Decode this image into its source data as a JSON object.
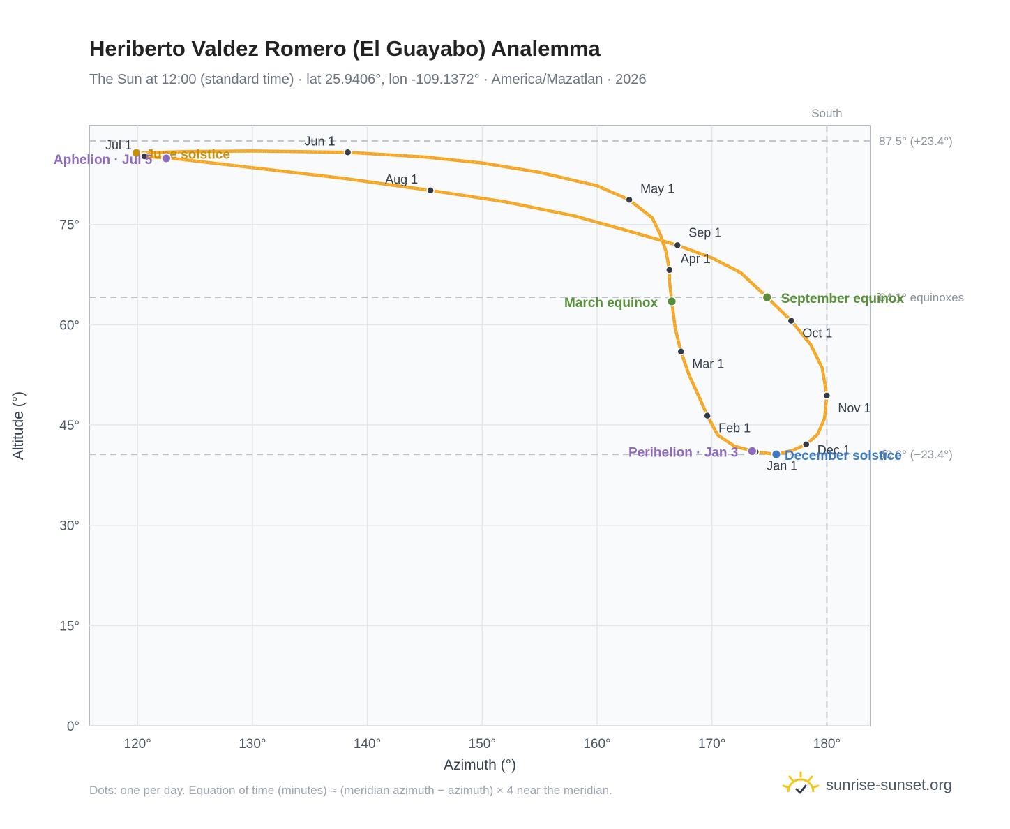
{
  "header": {
    "title": "Heriberto Valdez Romero (El Guayabo) Analemma",
    "subtitle": "The Sun at 12:00 (standard time) · lat 25.9406°, lon -109.1372° · America/Mazatlan · 2026"
  },
  "footer": {
    "note": "Dots: one per day. Equation of time (minutes) ≈ (meridian azimuth − azimuth) × 4 near the meridian.",
    "brand": "sunrise-sunset.org"
  },
  "colors": {
    "curve": "#f5a623",
    "month_marker": "#333b47",
    "solstice_june": "#c8900a",
    "solstice_december": "#3b7ac0",
    "equinox": "#5a8f3a",
    "apsis": "#8f6bbf",
    "reference_line": "#b9c0c8"
  },
  "chart_data": {
    "type": "scatter",
    "xlabel": "Azimuth (°)",
    "ylabel": "Altitude (°)",
    "xlim": [
      115.8,
      183.8
    ],
    "ylim": [
      0,
      89.8
    ],
    "x_ticks": [
      120,
      130,
      140,
      150,
      160,
      170,
      180
    ],
    "x_tick_labels": [
      "120°",
      "130°",
      "140°",
      "150°",
      "160°",
      "170°",
      "180°"
    ],
    "y_ticks": [
      0,
      15,
      30,
      45,
      60,
      75
    ],
    "y_tick_labels": [
      "0°",
      "15°",
      "30°",
      "45°",
      "60°",
      "75°"
    ],
    "grid": true,
    "meridian": {
      "azimuth": 180,
      "label": "South"
    },
    "reference_lines": [
      {
        "altitude": 87.5,
        "label": "87.5° (+23.4°)"
      },
      {
        "altitude": 64.1,
        "label": "64.1° equinoxes"
      },
      {
        "altitude": 40.6,
        "label": "40.6° (−23.4°)"
      }
    ],
    "month_markers": [
      {
        "label": "Jan 1",
        "az": 173.8,
        "alt": 41.0
      },
      {
        "label": "Feb 1",
        "az": 169.6,
        "alt": 46.4
      },
      {
        "label": "Mar 1",
        "az": 167.3,
        "alt": 56.0
      },
      {
        "label": "Apr 1",
        "az": 166.3,
        "alt": 68.2
      },
      {
        "label": "May 1",
        "az": 162.8,
        "alt": 78.7
      },
      {
        "label": "Jun 1",
        "az": 138.3,
        "alt": 85.8
      },
      {
        "label": "Jul 1",
        "az": 120.6,
        "alt": 85.2
      },
      {
        "label": "Aug 1",
        "az": 145.5,
        "alt": 80.1
      },
      {
        "label": "Sep 1",
        "az": 167.0,
        "alt": 71.9
      },
      {
        "label": "Oct 1",
        "az": 176.9,
        "alt": 60.6
      },
      {
        "label": "Nov 1",
        "az": 180.0,
        "alt": 49.4
      },
      {
        "label": "Dec 1",
        "az": 178.2,
        "alt": 42.1
      }
    ],
    "events": [
      {
        "label": "June solstice",
        "az": 119.9,
        "alt": 85.7,
        "kind": "solstice_june"
      },
      {
        "label": "December solstice",
        "az": 175.6,
        "alt": 40.6,
        "kind": "solstice_december"
      },
      {
        "label": "March equinox",
        "az": 166.5,
        "alt": 63.5,
        "kind": "equinox"
      },
      {
        "label": "September equinox",
        "az": 174.8,
        "alt": 64.1,
        "kind": "equinox"
      },
      {
        "label": "Aphelion · Jul 5",
        "az": 122.5,
        "alt": 84.9,
        "kind": "apsis"
      },
      {
        "label": "Perihelion · Jan 3",
        "az": 173.5,
        "alt": 41.1,
        "kind": "apsis"
      }
    ],
    "path": [
      [
        175.6,
        40.6
      ],
      [
        173.8,
        41.0
      ],
      [
        172.0,
        41.8
      ],
      [
        170.5,
        43.5
      ],
      [
        169.6,
        46.4
      ],
      [
        168.8,
        49.5
      ],
      [
        168.0,
        52.5
      ],
      [
        167.3,
        56.0
      ],
      [
        166.8,
        59.5
      ],
      [
        166.5,
        63.5
      ],
      [
        166.3,
        66.5
      ],
      [
        166.3,
        68.2
      ],
      [
        166.0,
        71.0
      ],
      [
        165.5,
        73.5
      ],
      [
        164.8,
        76.0
      ],
      [
        162.8,
        78.7
      ],
      [
        160.0,
        80.8
      ],
      [
        155.0,
        82.8
      ],
      [
        150.0,
        84.2
      ],
      [
        145.0,
        85.1
      ],
      [
        138.3,
        85.8
      ],
      [
        130.0,
        86.0
      ],
      [
        124.0,
        85.9
      ],
      [
        119.9,
        85.7
      ],
      [
        120.6,
        85.2
      ],
      [
        123.0,
        84.9
      ],
      [
        130.0,
        83.5
      ],
      [
        138.0,
        81.9
      ],
      [
        145.5,
        80.1
      ],
      [
        152.0,
        78.4
      ],
      [
        158.0,
        76.3
      ],
      [
        163.0,
        73.9
      ],
      [
        167.0,
        71.9
      ],
      [
        170.0,
        70.0
      ],
      [
        172.5,
        67.8
      ],
      [
        174.8,
        64.1
      ],
      [
        176.9,
        60.6
      ],
      [
        178.6,
        57.0
      ],
      [
        179.6,
        53.5
      ],
      [
        180.0,
        49.4
      ],
      [
        179.8,
        46.0
      ],
      [
        179.2,
        43.6
      ],
      [
        178.2,
        42.1
      ],
      [
        177.0,
        41.2
      ],
      [
        175.6,
        40.6
      ]
    ]
  }
}
